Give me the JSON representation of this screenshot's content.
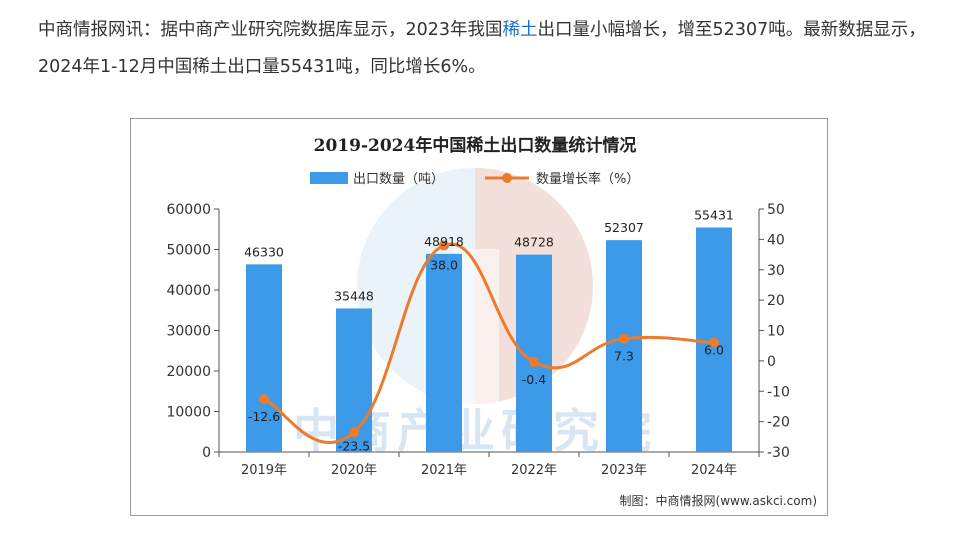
{
  "article": {
    "text_before": "中商情报网讯：据中商产业研究院数据库显示，2023年我国",
    "link": "稀土",
    "text_after": "出口量小幅增长，增至52307吨。最新数据显示，2024年1-12月中国稀土出口量55431吨，同比增长6%。"
  },
  "watermark": "中商产业研究院",
  "chart_data": {
    "type": "bar",
    "title": "2019-2024年中国稀土出口数量统计情况",
    "categories": [
      "2019年",
      "2020年",
      "2021年",
      "2022年",
      "2023年",
      "2024年"
    ],
    "series": [
      {
        "name": "出口数量（吨）",
        "type": "bar",
        "axis": "left",
        "values": [
          46330,
          35448,
          48918,
          48728,
          52307,
          55431
        ],
        "labels": [
          "46330",
          "35448",
          "48918",
          "48728",
          "52307",
          "55431"
        ],
        "color": "#3d9ae8"
      },
      {
        "name": "数量增长率（%）",
        "type": "line",
        "axis": "right",
        "values": [
          -12.6,
          -23.5,
          38.0,
          -0.4,
          7.3,
          6.0
        ],
        "labels": [
          "-12.6",
          "-23.5",
          "38.0",
          "-0.4",
          "7.3",
          "6.0"
        ],
        "color": "#ee7a2c"
      }
    ],
    "y_left": {
      "min": 0,
      "max": 60000,
      "ticks": [
        "0",
        "10000",
        "20000",
        "30000",
        "40000",
        "50000",
        "60000"
      ]
    },
    "y_right": {
      "min": -30,
      "max": 50,
      "ticks": [
        "-30",
        "-20",
        "-10",
        "0",
        "10",
        "20",
        "30",
        "40",
        "50"
      ]
    },
    "grid": false,
    "legend": "top-center",
    "source": "制图：中商情报网(www.askci.com)"
  }
}
